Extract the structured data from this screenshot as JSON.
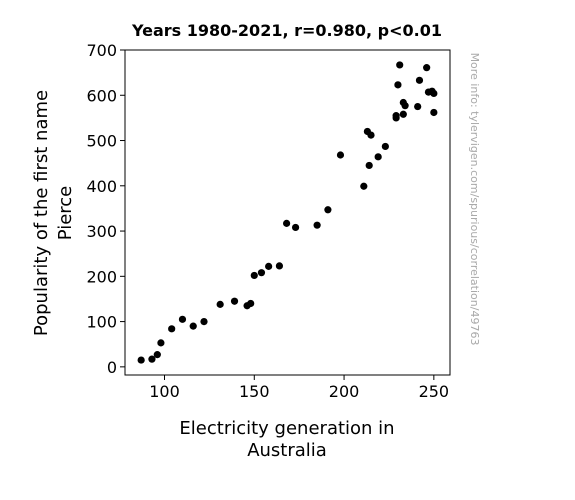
{
  "chart_data": {
    "type": "scatter",
    "title": "Years 1980-2021, r=0.980, p<0.01",
    "xlabel_lines": [
      "Electricity generation in",
      "Australia"
    ],
    "ylabel_lines": [
      "Popularity of the first name",
      "Pierce"
    ],
    "xlim": [
      78,
      259
    ],
    "ylim": [
      -18,
      700
    ],
    "xticks": [
      100,
      150,
      200,
      250
    ],
    "yticks": [
      0,
      100,
      200,
      300,
      400,
      500,
      600,
      700
    ],
    "grid": false,
    "marker_color": "#000000",
    "watermark": "More info: tylervigen.com/spurious/correlation/49763",
    "points": [
      {
        "x": 87,
        "y": 15
      },
      {
        "x": 93,
        "y": 17
      },
      {
        "x": 96,
        "y": 27
      },
      {
        "x": 98,
        "y": 53
      },
      {
        "x": 104,
        "y": 84
      },
      {
        "x": 110,
        "y": 105
      },
      {
        "x": 116,
        "y": 90
      },
      {
        "x": 122,
        "y": 100
      },
      {
        "x": 131,
        "y": 138
      },
      {
        "x": 139,
        "y": 145
      },
      {
        "x": 146,
        "y": 135
      },
      {
        "x": 148,
        "y": 140
      },
      {
        "x": 150,
        "y": 202
      },
      {
        "x": 154,
        "y": 208
      },
      {
        "x": 158,
        "y": 222
      },
      {
        "x": 164,
        "y": 223
      },
      {
        "x": 168,
        "y": 317
      },
      {
        "x": 173,
        "y": 308
      },
      {
        "x": 185,
        "y": 313
      },
      {
        "x": 191,
        "y": 347
      },
      {
        "x": 198,
        "y": 468
      },
      {
        "x": 211,
        "y": 399
      },
      {
        "x": 213,
        "y": 520
      },
      {
        "x": 214,
        "y": 445
      },
      {
        "x": 215,
        "y": 512
      },
      {
        "x": 219,
        "y": 464
      },
      {
        "x": 223,
        "y": 487
      },
      {
        "x": 229,
        "y": 550
      },
      {
        "x": 229,
        "y": 555
      },
      {
        "x": 230,
        "y": 623
      },
      {
        "x": 231,
        "y": 667
      },
      {
        "x": 233,
        "y": 584
      },
      {
        "x": 233,
        "y": 558
      },
      {
        "x": 234,
        "y": 577
      },
      {
        "x": 241,
        "y": 575
      },
      {
        "x": 242,
        "y": 633
      },
      {
        "x": 246,
        "y": 661
      },
      {
        "x": 247,
        "y": 607
      },
      {
        "x": 249,
        "y": 609
      },
      {
        "x": 250,
        "y": 562
      },
      {
        "x": 250,
        "y": 604
      }
    ]
  }
}
